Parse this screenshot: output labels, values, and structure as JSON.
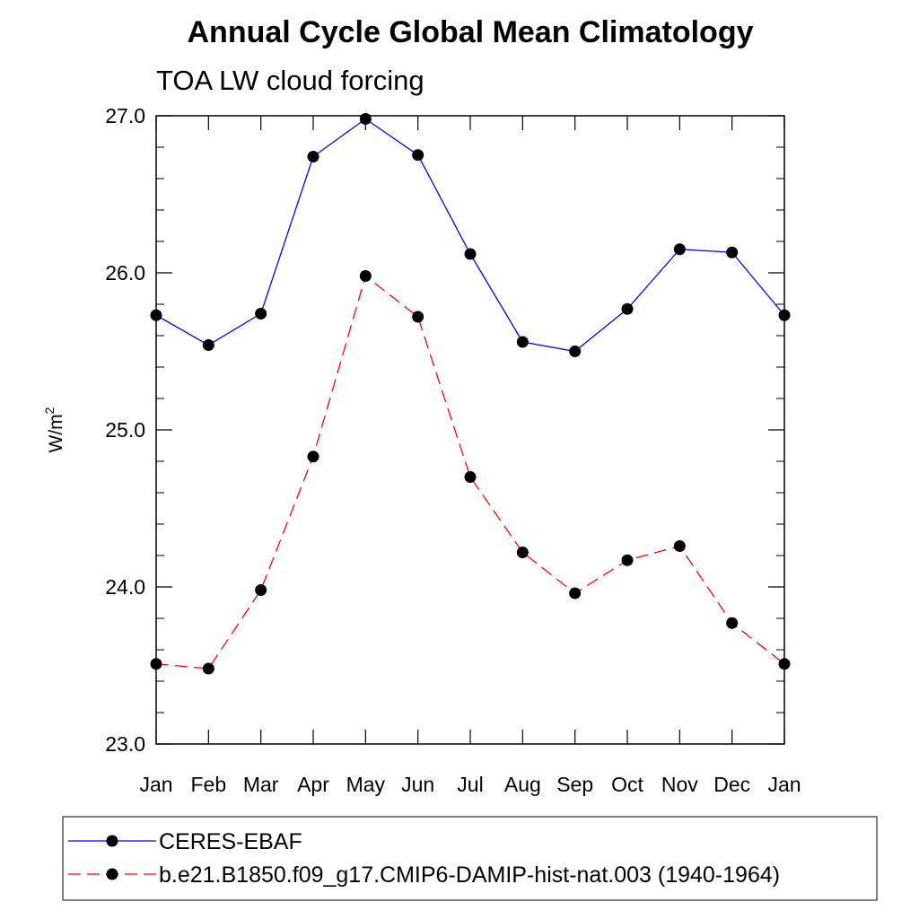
{
  "chart_data": {
    "type": "line",
    "title": "Annual Cycle Global Mean Climatology",
    "subtitle": "TOA LW cloud forcing",
    "ylabel": "W/m",
    "ylabel_superscript": "2",
    "xlabel": "",
    "categories": [
      "Jan",
      "Feb",
      "Mar",
      "Apr",
      "May",
      "Jun",
      "Jul",
      "Aug",
      "Sep",
      "Oct",
      "Nov",
      "Dec",
      "Jan"
    ],
    "ylim": [
      23.0,
      27.0
    ],
    "yticks": [
      23.0,
      24.0,
      25.0,
      26.0,
      27.0
    ],
    "ytick_labels": [
      "23.0",
      "24.0",
      "25.0",
      "26.0",
      "27.0"
    ],
    "yminor_step": 0.2,
    "grid": false,
    "legend_position": "bottom",
    "series": [
      {
        "name": "CERES-EBAF",
        "color": "#0000ff",
        "dash": "solid",
        "values": [
          25.73,
          25.54,
          25.74,
          26.74,
          26.98,
          26.75,
          26.12,
          25.56,
          25.5,
          25.77,
          26.15,
          26.13,
          25.73
        ]
      },
      {
        "name": "b.e21.B1850.f09_g17.CMIP6-DAMIP-hist-nat.003 (1940-1964)",
        "color": "#ff0000",
        "dash": "dashed",
        "values": [
          23.51,
          23.48,
          23.98,
          24.83,
          25.98,
          25.72,
          24.7,
          24.22,
          23.96,
          24.17,
          24.26,
          23.77,
          23.51
        ]
      }
    ]
  }
}
